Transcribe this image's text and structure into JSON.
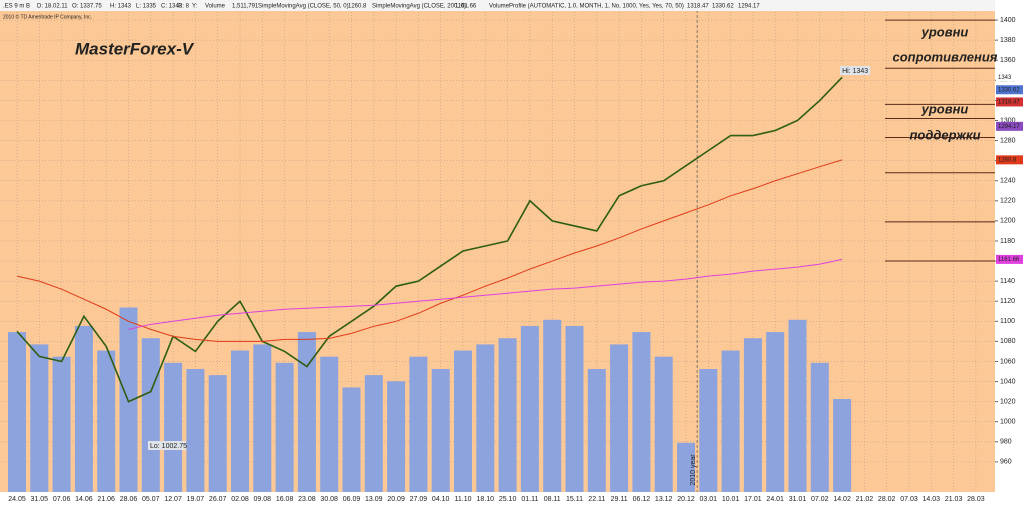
{
  "chart_data": {
    "type": "line",
    "title": "MasterForex-V",
    "copyright": "2010 © TD Ameritrade IP Company, Inc.",
    "header": [
      ".ES 9 m B",
      "D: 18.02.11",
      "O: 1337.75",
      "H: 1343",
      "L: 1335",
      "C: 1343",
      "R: 8",
      "Y:",
      "Volume"
    ],
    "volume_last": {
      "value": 1511791,
      "label": "1,511,791"
    },
    "studies": [
      {
        "name": "SimpleMovingAvg (CLOSE, 50, 0)",
        "value": 1260.8,
        "color": "#e03a1a"
      },
      {
        "name": "SimpleMovingAvg (CLOSE, 200, 0)",
        "value": 1161.66,
        "color": "#e040e0"
      },
      {
        "name": "VolumeProfile (AUTOMATIC, 1.0, MONTH, 1, No, 1000, Yes, Yes, 70, 50)",
        "values": [
          1318.47,
          1330.62,
          1294.17
        ],
        "colors": [
          "#d23030",
          "#4f74d0",
          "#8a4ac0"
        ]
      }
    ],
    "categories": [
      "24.05",
      "31.05",
      "07.06",
      "14.06",
      "21.06",
      "28.06",
      "05.07",
      "12.07",
      "19.07",
      "26.07",
      "02.08",
      "09.08",
      "16.08",
      "23.08",
      "30.08",
      "06.09",
      "13.09",
      "20.09",
      "27.09",
      "04.10",
      "11.10",
      "18.10",
      "25.10",
      "01.11",
      "08.11",
      "15.11",
      "22.11",
      "29.11",
      "06.12",
      "13.12",
      "20.12",
      "03.01",
      "10.01",
      "17.01",
      "24.01",
      "31.01",
      "07.02",
      "14.02",
      "21.02",
      "28.02",
      "07.03",
      "14.03",
      "21.03",
      "28.03"
    ],
    "year_label": "2010 year",
    "year_after": 30,
    "series": [
      {
        "name": "Close",
        "color": "#2d5e12",
        "values": [
          1090,
          1065,
          1060,
          1105,
          1075,
          1020,
          1030,
          1085,
          1070,
          1100,
          1120,
          1080,
          1070,
          1055,
          1085,
          1100,
          1115,
          1135,
          1140,
          1155,
          1170,
          1175,
          1180,
          1220,
          1200,
          1195,
          1190,
          1225,
          1235,
          1240,
          1255,
          1270,
          1285,
          1285,
          1290,
          1300,
          1320,
          1343,
          null,
          null,
          null,
          null,
          null,
          null
        ]
      },
      {
        "name": "SMA 50",
        "color": "#e03a1a",
        "values": [
          1145,
          1140,
          1132,
          1122,
          1112,
          1100,
          1092,
          1085,
          1082,
          1080,
          1080,
          1080,
          1082,
          1082,
          1083,
          1088,
          1095,
          1100,
          1108,
          1118,
          1126,
          1135,
          1143,
          1152,
          1160,
          1168,
          1175,
          1183,
          1192,
          1200,
          1208,
          1216,
          1225,
          1232,
          1240,
          1247,
          1254,
          1260.8,
          null,
          null,
          null,
          null,
          null,
          null
        ]
      },
      {
        "name": "SMA 200",
        "color": "#e040e0",
        "values": [
          null,
          null,
          null,
          null,
          null,
          1092,
          1097,
          1100,
          1103,
          1106,
          1108,
          1110,
          1112,
          1113,
          1114,
          1115,
          1116,
          1118,
          1120,
          1122,
          1124,
          1126,
          1128,
          1130,
          1132,
          1133,
          1135,
          1137,
          1139,
          1140,
          1142,
          1145,
          1147,
          1150,
          1152,
          1154,
          1157,
          1161.66,
          null,
          null,
          null,
          null,
          null,
          null
        ]
      },
      {
        "name": "Volume",
        "color": "#7f9fe6",
        "axis": "y2",
        "values": [
          2600000,
          2400000,
          2200000,
          2700000,
          2300000,
          3000000,
          2500000,
          2100000,
          2000000,
          1900000,
          2300000,
          2400000,
          2100000,
          2600000,
          2200000,
          1700000,
          1900000,
          1800000,
          2200000,
          2000000,
          2300000,
          2400000,
          2500000,
          2700000,
          2800000,
          2700000,
          2000000,
          2400000,
          2600000,
          2200000,
          800000,
          2000000,
          2300000,
          2500000,
          2600000,
          2800000,
          2100000,
          1511791,
          null,
          null,
          null,
          null,
          null,
          null
        ]
      }
    ],
    "hi_label": "Hi: 1343",
    "lo_label": "Lo: 1002.75",
    "ylim": [
      930,
      1420
    ],
    "yticks": [
      960,
      980,
      1000,
      1020,
      1040,
      1060,
      1080,
      1100,
      1120,
      1140,
      1160,
      1180,
      1200,
      1220,
      1240,
      1260,
      1280,
      1300,
      1320,
      1340,
      1360,
      1380,
      1400
    ],
    "y2lim": [
      0,
      8000000
    ],
    "grid": true,
    "levels": [
      1400,
      1352,
      1316,
      1302,
      1283,
      1248,
      1199,
      1160
    ],
    "notes": [
      {
        "text": "уровни",
        "color": "#3b5e1f"
      },
      {
        "text": "сопротивления",
        "color": "#3b5e1f"
      },
      {
        "text": "уровни",
        "color": "#7a1f1f"
      },
      {
        "text": "поддержки",
        "color": "#7a1f1f"
      }
    ]
  }
}
